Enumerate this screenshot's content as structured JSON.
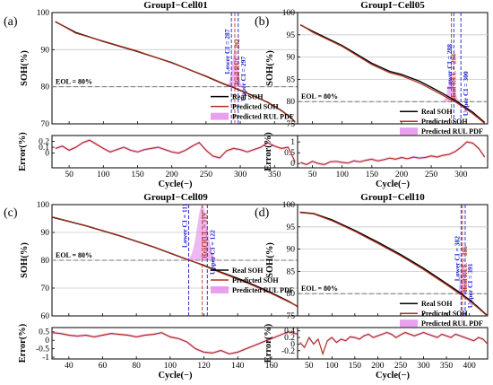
{
  "chart_data": [
    {
      "type": "line",
      "panel_label": "(a)",
      "title": "GroupI−Cell01",
      "ylabel": "SOH(%)",
      "error_ylabel": "Error(%)",
      "xlabel": "Cycle(−)",
      "xlim": [
        25,
        385
      ],
      "xticks": [
        50,
        100,
        150,
        200,
        250,
        300,
        350
      ],
      "ylim": [
        70,
        100
      ],
      "yticks": [
        70,
        80,
        90,
        100
      ],
      "error_ylim": [
        -0.25,
        0.3
      ],
      "error_yticks": [
        0,
        0.1,
        0.2
      ],
      "eol_value": 80,
      "eol_label": "EOL = 80%",
      "legend": [
        "Real SOH",
        "Predicted SOH",
        "Predicted RUL PDF"
      ],
      "series": [
        {
          "name": "Real SOH",
          "color": "#000000",
          "x": [
            30,
            60,
            100,
            150,
            200,
            250,
            275,
            290,
            300,
            320,
            340,
            360,
            375,
            380
          ],
          "values": [
            97.5,
            94.6,
            92.2,
            89.5,
            86.5,
            82.8,
            80.8,
            79.8,
            79.0,
            77.5,
            75.8,
            73.6,
            71.5,
            70.4
          ]
        },
        {
          "name": "Predicted SOH",
          "color": "#b3301e",
          "x": [
            30,
            60,
            100,
            150,
            200,
            250,
            275,
            290,
            300,
            320,
            340,
            360,
            375,
            380
          ],
          "values": [
            97.6,
            94.4,
            92.3,
            89.6,
            86.4,
            82.9,
            80.9,
            79.9,
            79.1,
            77.4,
            75.9,
            73.5,
            71.6,
            70.5
          ]
        }
      ],
      "error": {
        "x": [
          30,
          40,
          50,
          60,
          70,
          80,
          90,
          100,
          110,
          120,
          130,
          140,
          150,
          160,
          170,
          180,
          190,
          200,
          210,
          220,
          230,
          240,
          250,
          260,
          270,
          280,
          290,
          300,
          310,
          320,
          330,
          340,
          350,
          360,
          370,
          380
        ],
        "values": [
          0.08,
          0.12,
          0.05,
          0.1,
          0.18,
          0.22,
          0.15,
          0.08,
          0.02,
          0.06,
          0.1,
          0.05,
          0.02,
          0.06,
          0.08,
          0.1,
          0.06,
          0.02,
          0.0,
          0.05,
          0.12,
          0.18,
          0.05,
          -0.05,
          -0.08,
          0.04,
          0.08,
          0.06,
          0.02,
          0.06,
          0.1,
          0.18,
          0.12,
          0.08,
          0.1,
          -0.15
        ]
      },
      "rul": {
        "lower_ci": 287,
        "predicted": 292,
        "upper_ci": 297,
        "real_rul": 292,
        "pdf_width": 4,
        "pdf_height": 10
      },
      "annotations": {
        "lower": "Lower CI = 287",
        "pred": "Real RUL = 292",
        "upper": "Upper CI = 297",
        "pred_suffix": ""
      }
    },
    {
      "type": "line",
      "panel_label": "(b)",
      "title": "GroupI−Cell05",
      "ylabel": "SOH(%)",
      "error_ylabel": "Error(%)",
      "xlabel": "Cycle(−)",
      "xlim": [
        25,
        345
      ],
      "xticks": [
        50,
        100,
        150,
        200,
        250,
        300
      ],
      "ylim": [
        75,
        100
      ],
      "yticks": [
        75,
        80,
        85,
        90,
        95,
        100
      ],
      "error_ylim": [
        -0.2,
        1.3
      ],
      "error_yticks": [
        0,
        0.5,
        1
      ],
      "eol_value": 80,
      "eol_label": "EOL = 80%",
      "legend": [
        "Real SOH",
        "Predicted SOH",
        "Predicted RUL PDF"
      ],
      "series": [
        {
          "name": "Real SOH",
          "color": "#000000",
          "x": [
            30,
            50,
            100,
            150,
            180,
            200,
            230,
            250,
            270,
            280,
            290,
            300,
            320,
            340
          ],
          "values": [
            97.2,
            95.8,
            92.6,
            88.6,
            86.8,
            86.1,
            84.6,
            83.2,
            81.8,
            81.0,
            80.3,
            79.4,
            77.6,
            75.3
          ]
        },
        {
          "name": "Predicted SOH",
          "color": "#b3301e",
          "x": [
            30,
            50,
            100,
            150,
            180,
            200,
            230,
            250,
            270,
            280,
            290,
            300,
            320,
            340
          ],
          "values": [
            97.3,
            95.6,
            92.4,
            88.3,
            86.5,
            85.8,
            84.2,
            82.8,
            81.4,
            80.6,
            80.0,
            79.1,
            77.3,
            75.1
          ]
        }
      ],
      "error": {
        "x": [
          30,
          40,
          50,
          60,
          70,
          80,
          90,
          100,
          110,
          120,
          130,
          140,
          150,
          160,
          170,
          180,
          190,
          200,
          210,
          220,
          230,
          240,
          250,
          260,
          270,
          280,
          290,
          300,
          310,
          320,
          330,
          340
        ],
        "values": [
          0.05,
          -0.05,
          0.1,
          0.0,
          -0.05,
          0.08,
          0.1,
          0.05,
          0.02,
          0.12,
          0.08,
          0.15,
          0.2,
          0.12,
          0.18,
          0.25,
          0.2,
          0.28,
          0.22,
          0.3,
          0.25,
          0.28,
          0.35,
          0.3,
          0.38,
          0.42,
          0.55,
          0.75,
          1.0,
          0.95,
          0.7,
          0.3
        ]
      },
      "rul": {
        "lower_ci": 288,
        "predicted": 284,
        "upper_ci": 300,
        "real_rul": 284,
        "pdf_width": 5,
        "pdf_height": 6
      },
      "annotations": {
        "lower": "Lower CI = 288",
        "pred": "Real RUL = 284",
        "upper": "Upper CI = 300",
        "pred_suffix": ""
      }
    },
    {
      "type": "line",
      "panel_label": "(c)",
      "title": "GroupI−Cell09",
      "ylabel": "SOH(%)",
      "error_ylabel": "Error(%)",
      "xlabel": "Cycle(−)",
      "xlim": [
        30,
        176
      ],
      "xticks": [
        40,
        60,
        80,
        100,
        120,
        140,
        160
      ],
      "ylim": [
        60,
        100
      ],
      "yticks": [
        60,
        70,
        80,
        90,
        100
      ],
      "error_ylim": [
        -1.1,
        0.75
      ],
      "error_yticks": [
        -1,
        -0.5,
        0,
        0.5
      ],
      "eol_value": 80,
      "eol_label": "EOL = 80%",
      "legend": [
        "Real SOH",
        "Predicted SOH",
        "Predicted RUL PDF"
      ],
      "series": [
        {
          "name": "Real SOH",
          "color": "#000000",
          "x": [
            30,
            50,
            70,
            90,
            110,
            120,
            130,
            140,
            150,
            160,
            170,
            176
          ],
          "values": [
            95.5,
            92.4,
            88.8,
            84.8,
            80.3,
            78.2,
            75.7,
            73.5,
            71.0,
            68.3,
            65.3,
            63.2
          ]
        },
        {
          "name": "Predicted SOH",
          "color": "#b3301e",
          "x": [
            30,
            50,
            70,
            90,
            110,
            120,
            130,
            140,
            150,
            160,
            170,
            176
          ],
          "values": [
            95.6,
            92.5,
            88.9,
            84.9,
            80.4,
            78.0,
            75.5,
            73.2,
            70.7,
            68.0,
            65.1,
            63.3
          ]
        }
      ],
      "error": {
        "x": [
          30,
          35,
          40,
          45,
          50,
          55,
          60,
          65,
          70,
          75,
          80,
          85,
          90,
          95,
          100,
          105,
          110,
          115,
          120,
          125,
          130,
          135,
          140,
          145,
          150,
          155,
          160,
          165,
          170,
          176
        ],
        "values": [
          0.45,
          0.4,
          0.3,
          0.25,
          0.3,
          0.2,
          0.3,
          0.4,
          0.35,
          0.3,
          0.2,
          0.3,
          0.35,
          0.45,
          0.2,
          0.1,
          -0.1,
          -0.5,
          -0.7,
          -0.75,
          -0.6,
          -0.8,
          -0.7,
          -0.5,
          -0.3,
          -0.1,
          0.1,
          0.3,
          0.5,
          0.35
        ]
      },
      "rul": {
        "lower_ci": 111,
        "predicted": 119,
        "upper_ci": 122,
        "real_rul": 119,
        "pdf_width": 3,
        "pdf_height": 20
      },
      "annotations": {
        "lower": "Lower CI = 111",
        "pred": "Real RUL = 119",
        "upper": "Upper CI = 122",
        "pred_suffix": ""
      }
    },
    {
      "type": "line",
      "panel_label": "(d)",
      "title": "GroupI−Cell10",
      "ylabel": "SOH(%)",
      "error_ylabel": "Error(%)",
      "xlabel": "Cycle(−)",
      "xlim": [
        25,
        440
      ],
      "xticks": [
        50,
        100,
        150,
        200,
        250,
        300,
        350,
        400
      ],
      "ylim": [
        75,
        100
      ],
      "yticks": [
        75,
        80,
        85,
        90,
        95,
        100
      ],
      "error_ylim": [
        -0.45,
        0.5
      ],
      "error_yticks": [
        -0.2,
        0,
        0.2,
        0.4
      ],
      "eol_value": 80,
      "eol_label": "EOL = 80%",
      "legend": [
        "Real SOH",
        "Predicted SOH",
        "Predicted RUL PDF"
      ],
      "series": [
        {
          "name": "Real SOH",
          "color": "#000000",
          "x": [
            30,
            60,
            100,
            150,
            200,
            250,
            300,
            350,
            380,
            400,
            420,
            440
          ],
          "values": [
            98.3,
            98.0,
            96.6,
            94.2,
            91.6,
            88.8,
            85.7,
            82.3,
            80.2,
            78.6,
            76.9,
            75.0
          ]
        },
        {
          "name": "Predicted SOH",
          "color": "#b3301e",
          "x": [
            30,
            60,
            100,
            150,
            200,
            250,
            300,
            350,
            380,
            400,
            420,
            440
          ],
          "values": [
            98.2,
            97.9,
            96.4,
            94.0,
            91.3,
            88.5,
            85.4,
            82.0,
            79.9,
            78.4,
            76.7,
            74.9
          ]
        }
      ],
      "error": {
        "x": [
          30,
          40,
          50,
          60,
          70,
          80,
          90,
          100,
          110,
          120,
          130,
          140,
          150,
          160,
          170,
          180,
          190,
          200,
          210,
          220,
          230,
          240,
          250,
          260,
          270,
          280,
          290,
          300,
          310,
          320,
          330,
          340,
          350,
          360,
          370,
          380,
          390,
          400,
          410,
          420,
          430,
          440
        ],
        "values": [
          0.05,
          -0.1,
          0.2,
          0.0,
          0.15,
          -0.3,
          0.1,
          0.2,
          0.05,
          0.15,
          0.1,
          0.22,
          0.2,
          0.15,
          0.25,
          0.3,
          0.2,
          0.25,
          0.3,
          0.35,
          0.3,
          0.2,
          0.28,
          0.35,
          0.3,
          0.25,
          0.3,
          0.35,
          0.3,
          0.25,
          0.2,
          0.3,
          0.25,
          0.2,
          0.3,
          0.25,
          0.2,
          0.15,
          0.1,
          0.2,
          0.15,
          0.0
        ]
      },
      "rul": {
        "lower_ci": 382,
        "predicted": 385,
        "upper_ci": 391,
        "real_rul": 385,
        "pdf_width": 4,
        "pdf_height": 8
      },
      "annotations": {
        "lower": "Lower CI = 382",
        "pred": "Real RUL = 385",
        "upper": "Upper CI = 391",
        "pred_suffix": ""
      }
    }
  ],
  "colors": {
    "real": "#000000",
    "predicted": "#b3301e",
    "pdf": "#e080ea",
    "ci": "#1c1cd0",
    "pred_annot": "#c0392b",
    "grid": "#c8c8c8",
    "eol_line": "#777777"
  }
}
